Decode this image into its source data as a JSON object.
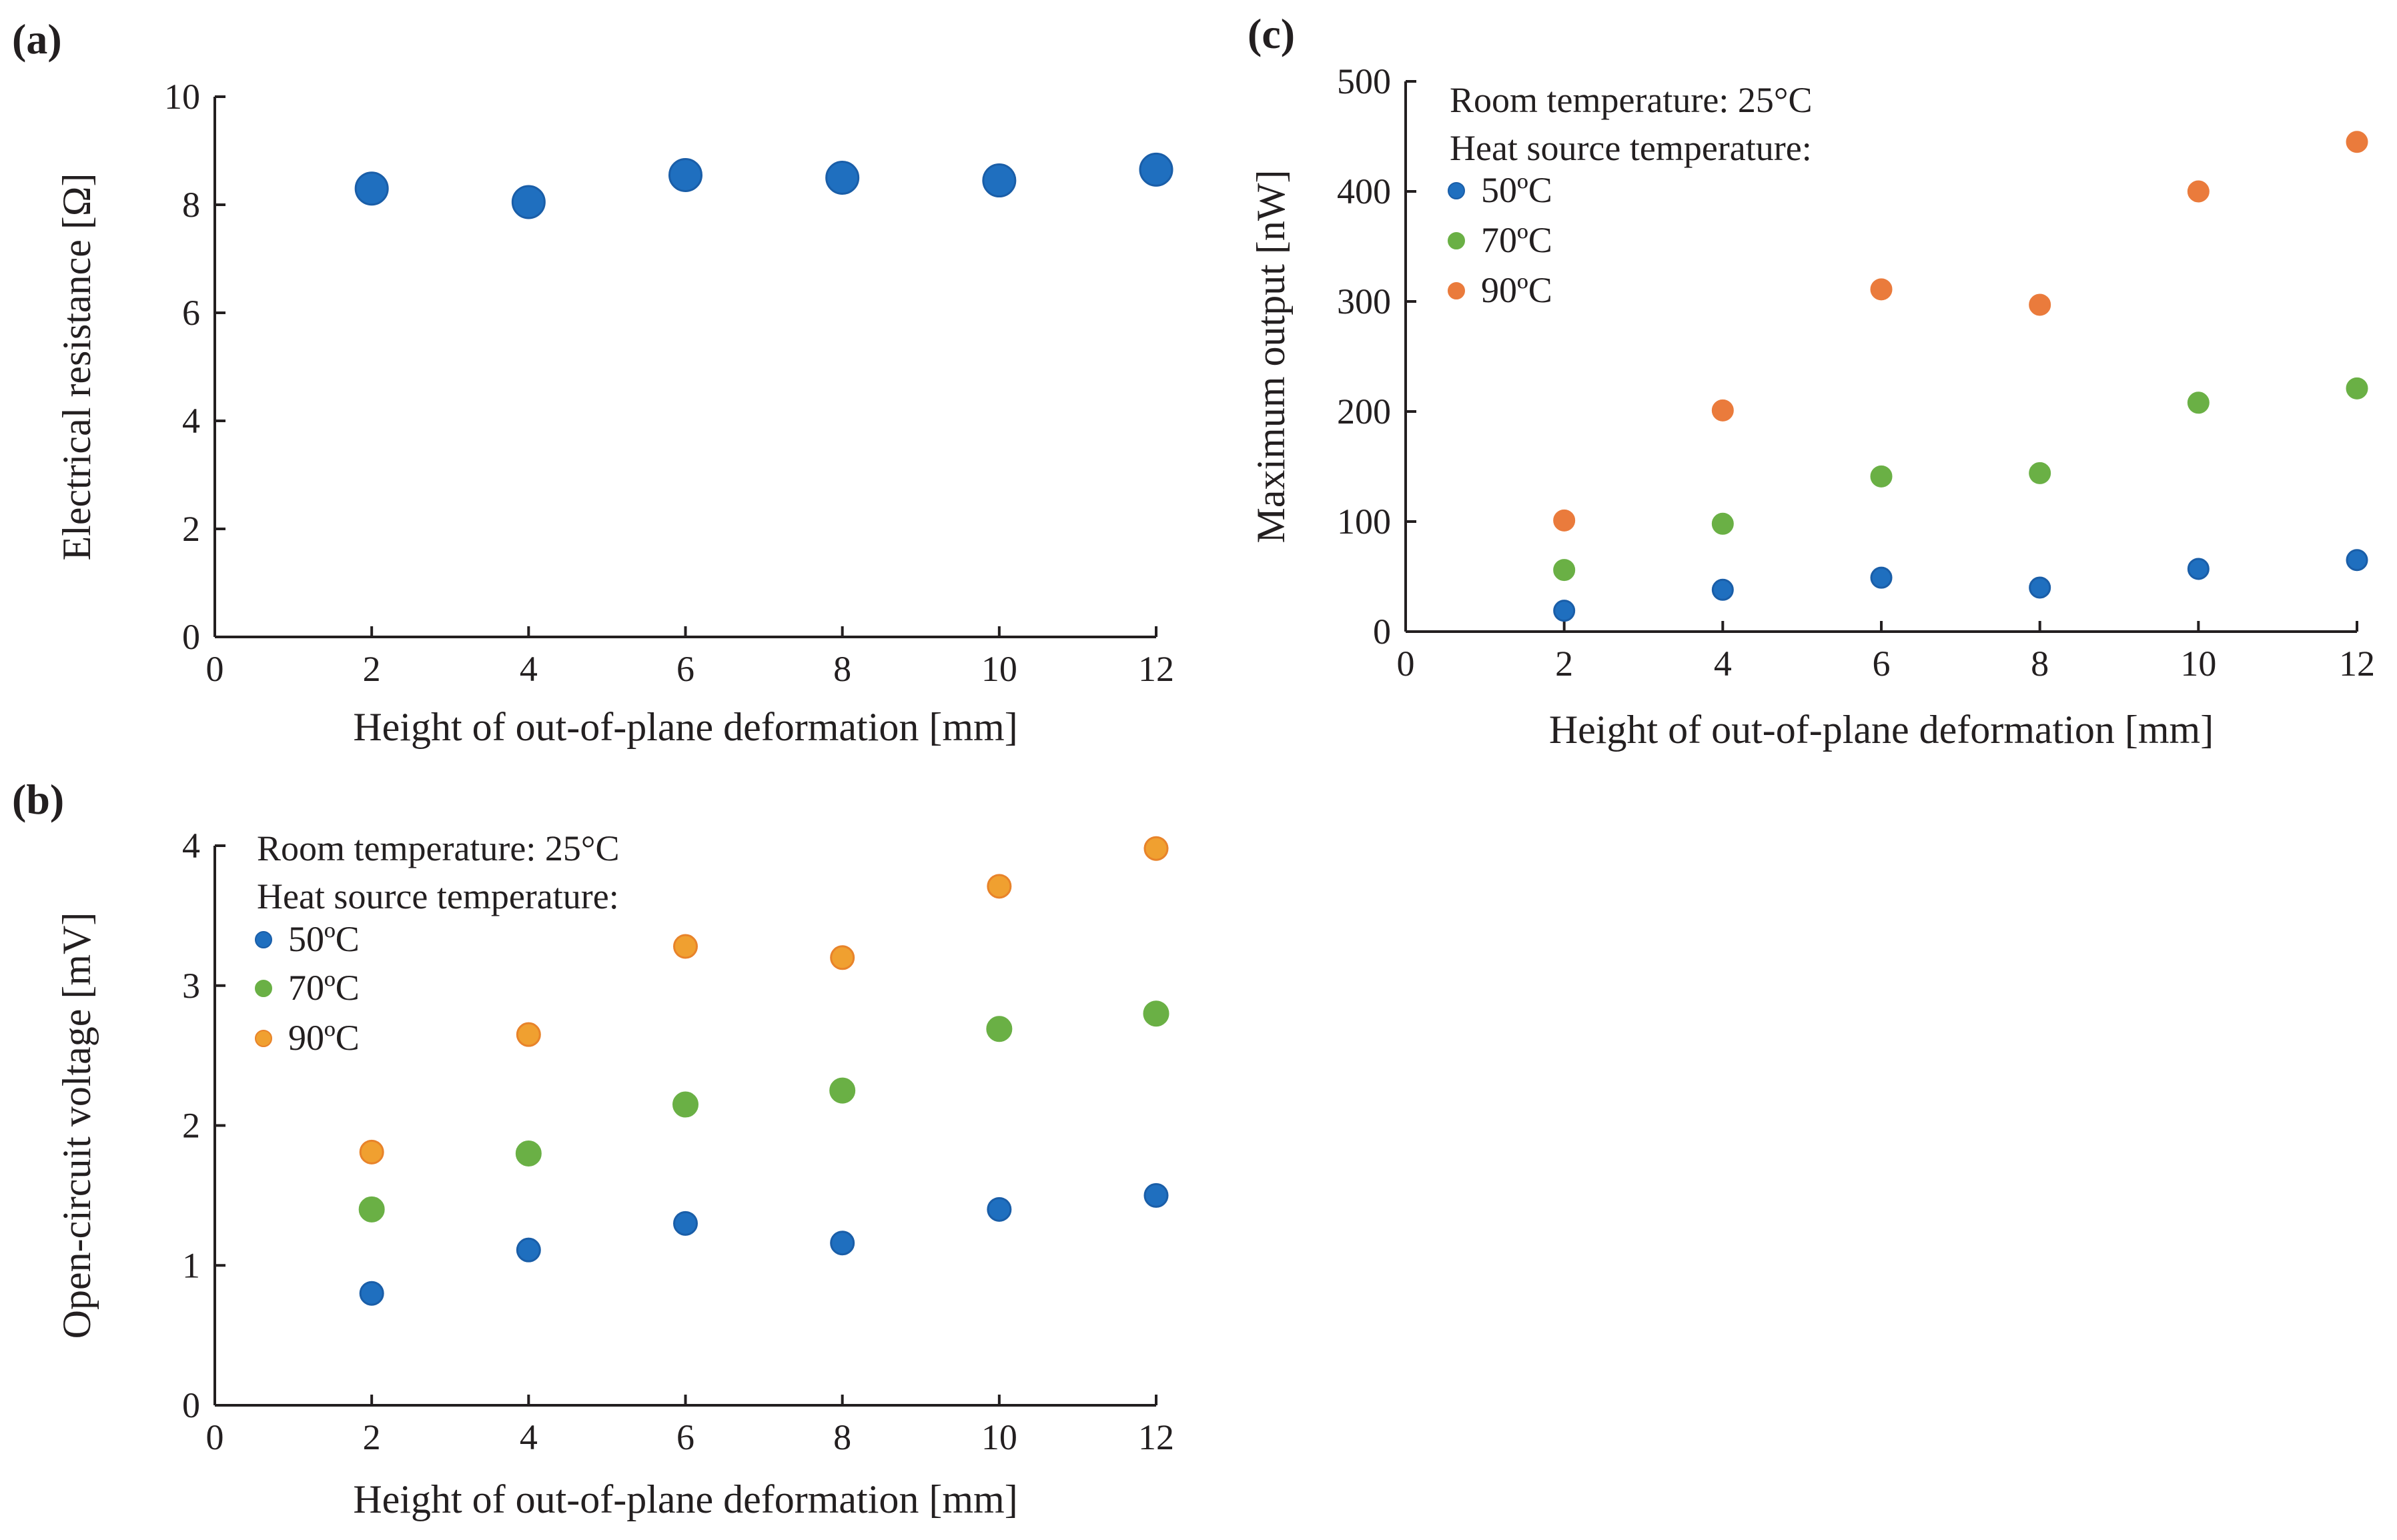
{
  "figure": {
    "panels": [
      "(a)",
      "(b)",
      "(c)"
    ]
  },
  "colors": {
    "blue": "#1f6fbf",
    "blue_edge": "#1a5ea8",
    "green": "#6ab045",
    "green_edge": "#6ab045",
    "orange": "#f0a030",
    "orange_edge": "#e8832a",
    "orange_c": "#ea7b3c",
    "axis": "#231f20"
  },
  "chart_data": [
    {
      "id": "a",
      "panel_label": "(a)",
      "type": "scatter",
      "title": "",
      "xlabel": "Height of out-of-plane deformation [mm]",
      "ylabel": "Electrical resistance [Ω]",
      "xlim": [
        0,
        12
      ],
      "ylim": [
        0,
        10
      ],
      "xticks": [
        0,
        2,
        4,
        6,
        8,
        10,
        12
      ],
      "yticks": [
        0,
        2,
        4,
        6,
        8,
        10
      ],
      "legend_title": [],
      "series": [
        {
          "name": "",
          "color": "blue",
          "x": [
            2,
            4,
            6,
            8,
            10,
            12
          ],
          "y": [
            8.3,
            8.05,
            8.55,
            8.5,
            8.45,
            8.65
          ]
        }
      ]
    },
    {
      "id": "b",
      "panel_label": "(b)",
      "type": "scatter",
      "title": "",
      "xlabel": "Height of out-of-plane deformation [mm]",
      "ylabel": "Open-circuit voltage [mV]",
      "xlim": [
        0,
        12
      ],
      "ylim": [
        0,
        4
      ],
      "xticks": [
        0,
        2,
        4,
        6,
        8,
        10,
        12
      ],
      "yticks": [
        0,
        1,
        2,
        3,
        4
      ],
      "legend_title": [
        "Room temperature: 25°C",
        "Heat source temperature:"
      ],
      "series": [
        {
          "name": "50ºC",
          "color": "blue",
          "x": [
            2,
            4,
            6,
            8,
            10,
            12
          ],
          "y": [
            0.8,
            1.11,
            1.3,
            1.16,
            1.4,
            1.5
          ]
        },
        {
          "name": "70ºC",
          "color": "green",
          "x": [
            2,
            4,
            6,
            8,
            10,
            12
          ],
          "y": [
            1.4,
            1.8,
            2.15,
            2.25,
            2.69,
            2.8
          ]
        },
        {
          "name": "90ºC",
          "color": "orange",
          "x": [
            2,
            4,
            6,
            8,
            10,
            12
          ],
          "y": [
            1.81,
            2.65,
            3.28,
            3.2,
            3.71,
            3.98
          ]
        }
      ]
    },
    {
      "id": "c",
      "panel_label": "(c)",
      "type": "scatter",
      "title": "",
      "xlabel": "Height of out-of-plane deformation [mm]",
      "ylabel": "Maximum output [nW]",
      "xlim": [
        0,
        12
      ],
      "ylim": [
        0,
        500
      ],
      "xticks": [
        0,
        2,
        4,
        6,
        8,
        10,
        12
      ],
      "yticks": [
        0,
        100,
        200,
        300,
        400,
        500
      ],
      "legend_title": [
        "Room temperature: 25°C",
        "Heat source temperature:"
      ],
      "series": [
        {
          "name": "50ºC",
          "color": "blue",
          "x": [
            2,
            4,
            6,
            8,
            10,
            12
          ],
          "y": [
            19,
            38,
            49,
            40,
            57,
            65
          ]
        },
        {
          "name": "70ºC",
          "color": "green",
          "x": [
            2,
            4,
            6,
            8,
            10,
            12
          ],
          "y": [
            56,
            98,
            141,
            144,
            208,
            221
          ]
        },
        {
          "name": "90ºC",
          "color": "orange_c",
          "x": [
            2,
            4,
            6,
            8,
            10,
            12
          ],
          "y": [
            101,
            201,
            311,
            297,
            400,
            445
          ]
        }
      ]
    }
  ]
}
